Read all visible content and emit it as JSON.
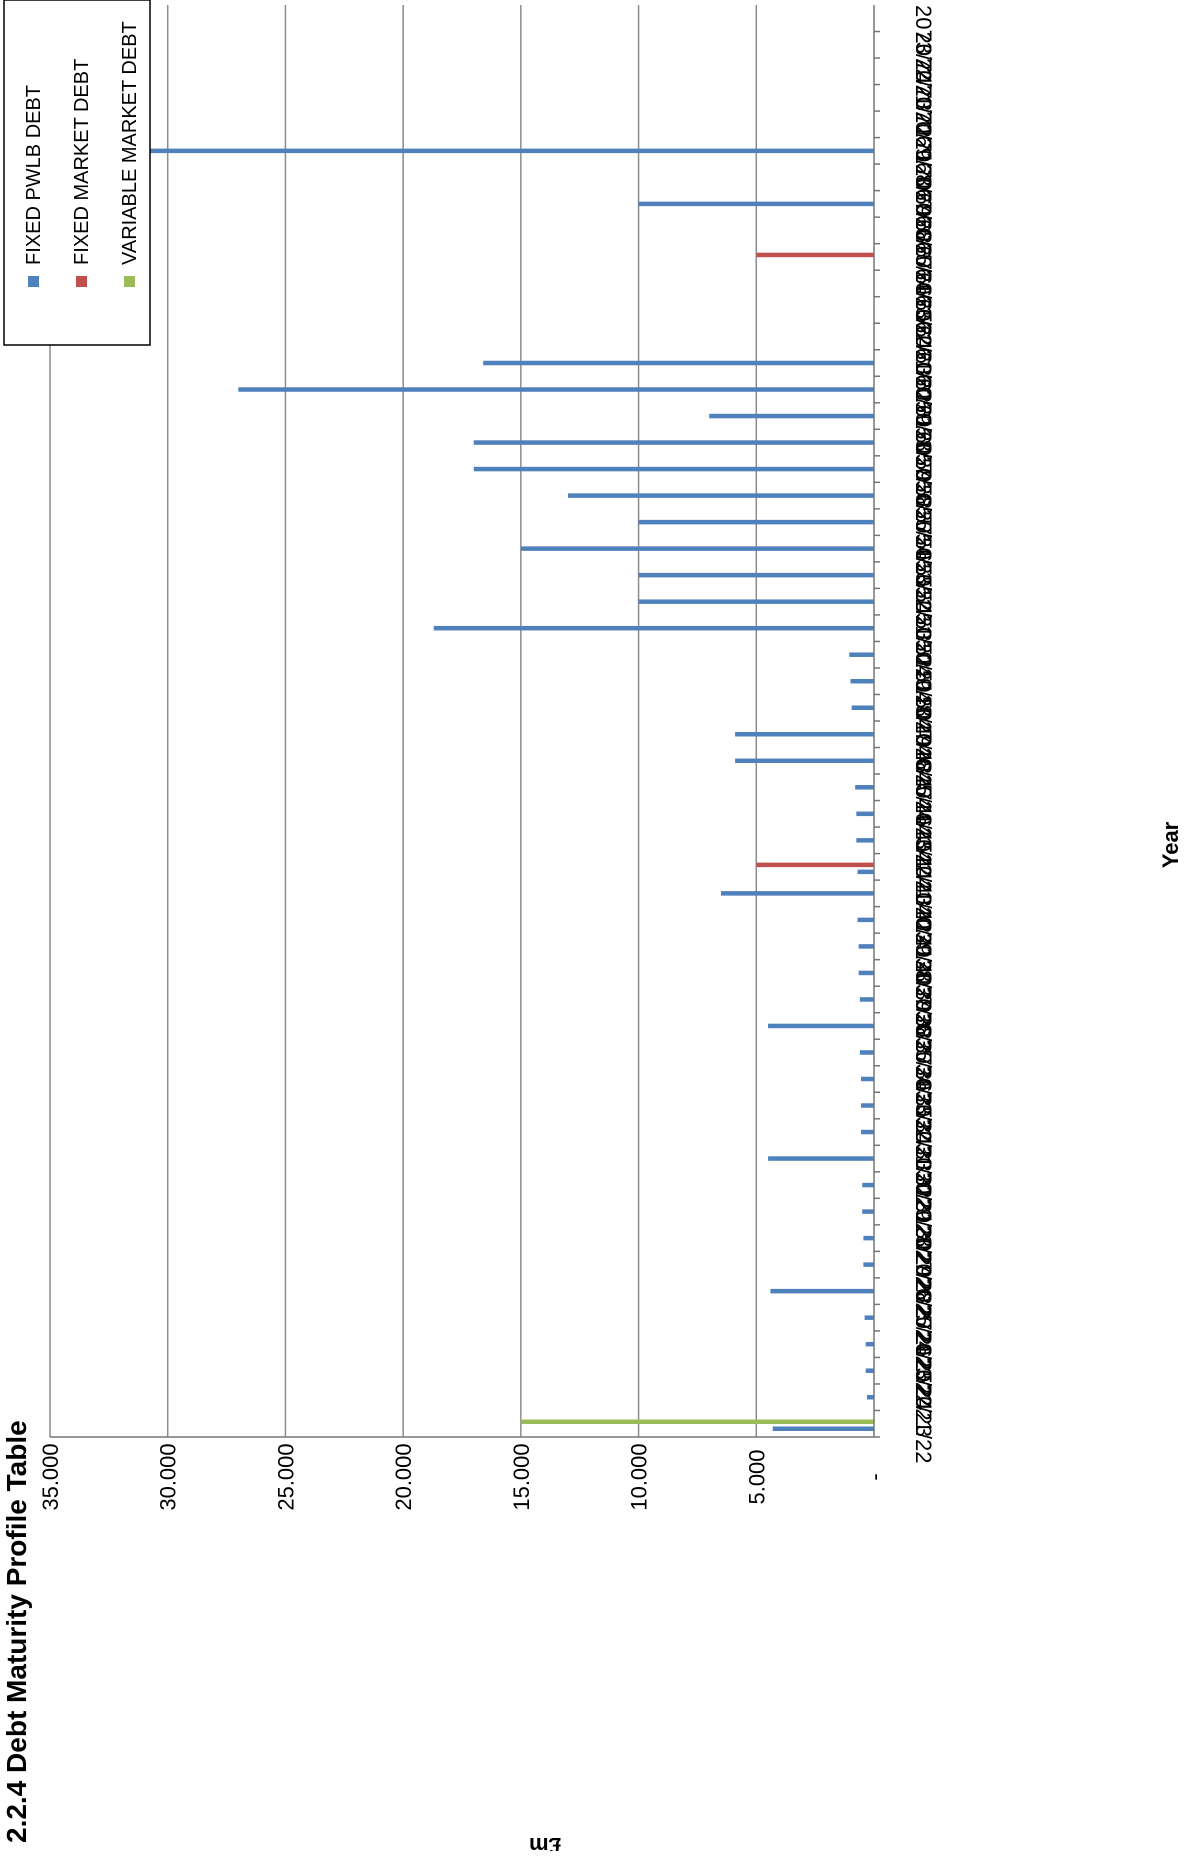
{
  "chart_data": {
    "type": "bar",
    "orientation": "horizontal",
    "title": "2.2.4 Debt Maturity Profile Table",
    "xlabel": "Year",
    "ylabel": "£m",
    "ylim": [
      0,
      35
    ],
    "yticks": [
      0,
      5,
      10,
      15,
      20,
      25,
      30,
      35
    ],
    "ytick_labels": [
      "-",
      "5.000",
      "10.000",
      "15.000",
      "20.000",
      "25.000",
      "30.000",
      "35.000"
    ],
    "grid": true,
    "legend_position": "top-right",
    "colors": {
      "pwlb": "#4f81bd",
      "market": "#c0504d",
      "variable": "#9bbb59"
    },
    "categories": [
      "2021/22",
      "2022/23",
      "2023/24",
      "2024/25",
      "2025/26",
      "2026/27",
      "2027/28",
      "2028/29",
      "2029/30",
      "2030/31",
      "2031/32",
      "2032/33",
      "2033/34",
      "2034/35",
      "2035/36",
      "2036/37",
      "2037/38",
      "2038/39",
      "2039/40",
      "2040/41",
      "2041/42",
      "2042/43",
      "2043/44",
      "2044/45",
      "2045/46",
      "2046/47",
      "2047/48",
      "2048/49",
      "2049/50",
      "2050/51",
      "2051/52",
      "2052/53",
      "2053/54",
      "2054/55",
      "2055/56",
      "2056/57",
      "2057/58",
      "2058/59",
      "2059/60",
      "2060/61",
      "2061/62",
      "2062/63",
      "2063/64",
      "2064/65",
      "2065/66",
      "2066/67",
      "2067/68",
      "2068/69",
      "2069/70",
      "2070/71",
      "2071/72",
      "2072/73",
      "2073/74"
    ],
    "series": [
      {
        "name": "FIXED PWLB DEBT",
        "color": "#4f81bd",
        "values": [
          4.3,
          0.3,
          0.35,
          0.35,
          0.4,
          4.4,
          0.45,
          0.45,
          0.5,
          0.5,
          4.5,
          0.55,
          0.55,
          0.55,
          0.6,
          4.5,
          0.6,
          0.65,
          0.65,
          0.7,
          6.5,
          0.7,
          0.75,
          0.75,
          0.8,
          5.9,
          5.9,
          0.95,
          1.0,
          1.05,
          18.7,
          10.0,
          10.0,
          15.0,
          10.0,
          13.0,
          17.0,
          17.0,
          7.0,
          27.0,
          16.6,
          0,
          0,
          0,
          0,
          0,
          10.0,
          0,
          31.0,
          0,
          0,
          0,
          0
        ]
      },
      {
        "name": "FIXED MARKET DEBT",
        "color": "#c0504d",
        "values": [
          0,
          0,
          0,
          0,
          0,
          0,
          0,
          0,
          0,
          0,
          0,
          0,
          0,
          0,
          0,
          0,
          0,
          0,
          0,
          0,
          0,
          5.0,
          0,
          0,
          0,
          0,
          0,
          0,
          0,
          0,
          0,
          0,
          0,
          0,
          0,
          0,
          0,
          0,
          0,
          0,
          0,
          0,
          0,
          0,
          5.0,
          0,
          0,
          0,
          0,
          0,
          0,
          0,
          0
        ]
      },
      {
        "name": "VARIABLE MARKET DEBT",
        "color": "#9bbb59",
        "values": [
          15.0,
          0,
          0,
          0,
          0,
          0,
          0,
          0,
          0,
          0,
          0,
          0,
          0,
          0,
          0,
          0,
          0,
          0,
          0,
          0,
          0,
          0,
          0,
          0,
          0,
          0,
          0,
          0,
          0,
          0,
          0,
          0,
          0,
          0,
          0,
          0,
          0,
          0,
          0,
          0,
          0,
          0,
          0,
          0,
          0,
          0,
          0,
          0,
          0,
          0,
          0,
          0,
          0
        ]
      }
    ]
  }
}
